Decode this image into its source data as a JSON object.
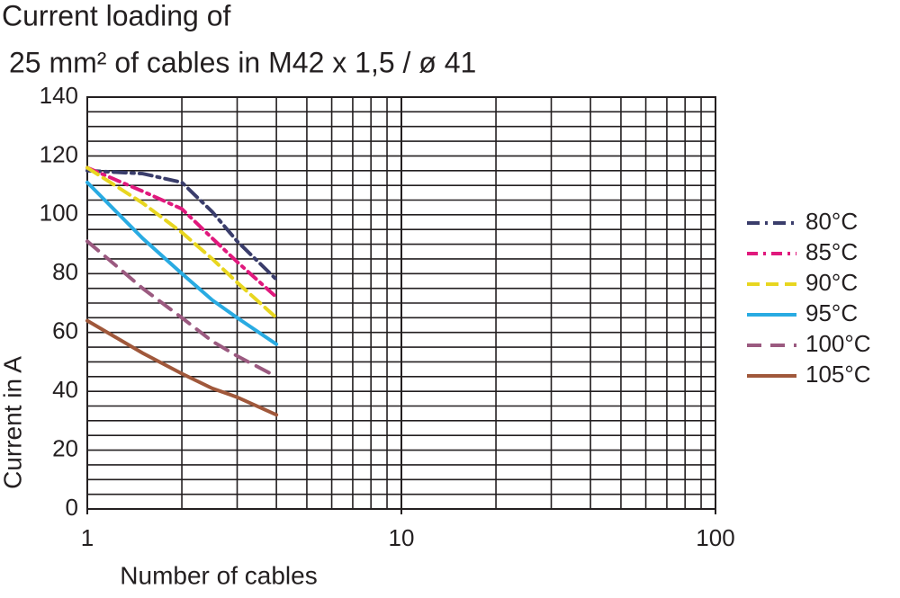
{
  "chart_data": {
    "type": "line",
    "title": [
      "Current loading of",
      "25 mm² of cables in M42 x 1,5 / ø 41"
    ],
    "x_label": "Number of cables",
    "y_label": "Current in A",
    "x": [
      1,
      1.5,
      2,
      2.5,
      3,
      4
    ],
    "xscale": "log",
    "xlim": [
      1,
      100
    ],
    "xticks": [
      1,
      10,
      100
    ],
    "x_minor_grid": [
      2,
      3,
      4,
      5,
      6,
      7,
      8,
      9,
      20,
      30,
      40,
      50,
      60,
      70,
      80,
      90
    ],
    "ylim": [
      0,
      140
    ],
    "yticks": [
      0,
      20,
      40,
      60,
      80,
      100,
      120,
      140
    ],
    "y_minor_grid": [
      5,
      10,
      15,
      25,
      30,
      35,
      45,
      50,
      55,
      65,
      70,
      75,
      85,
      90,
      95,
      105,
      110,
      115,
      125,
      130,
      135
    ],
    "grid": true,
    "legend": "right",
    "series": [
      {
        "name": "80°C",
        "color": "#3a3d6b",
        "dash": "14 6 3 6",
        "values": [
          115,
          114,
          111,
          101,
          91,
          78
        ]
      },
      {
        "name": "85°C",
        "color": "#e0197d",
        "dash": "12 6 3 6",
        "values": [
          116,
          108,
          102,
          92,
          84,
          72
        ]
      },
      {
        "name": "90°C",
        "color": "#e8d620",
        "dash": "14 7",
        "values": [
          116,
          104,
          94,
          85,
          77,
          65
        ]
      },
      {
        "name": "95°C",
        "color": "#29abe2",
        "dash": "none",
        "values": [
          111,
          92,
          80,
          71,
          65,
          56
        ]
      },
      {
        "name": "100°C",
        "color": "#9b5a80",
        "dash": "16 10",
        "values": [
          91,
          75,
          65,
          57,
          52,
          45
        ]
      },
      {
        "name": "105°C",
        "color": "#a0583b",
        "dash": "none",
        "values": [
          64,
          53,
          46,
          41,
          38,
          32
        ]
      }
    ]
  }
}
